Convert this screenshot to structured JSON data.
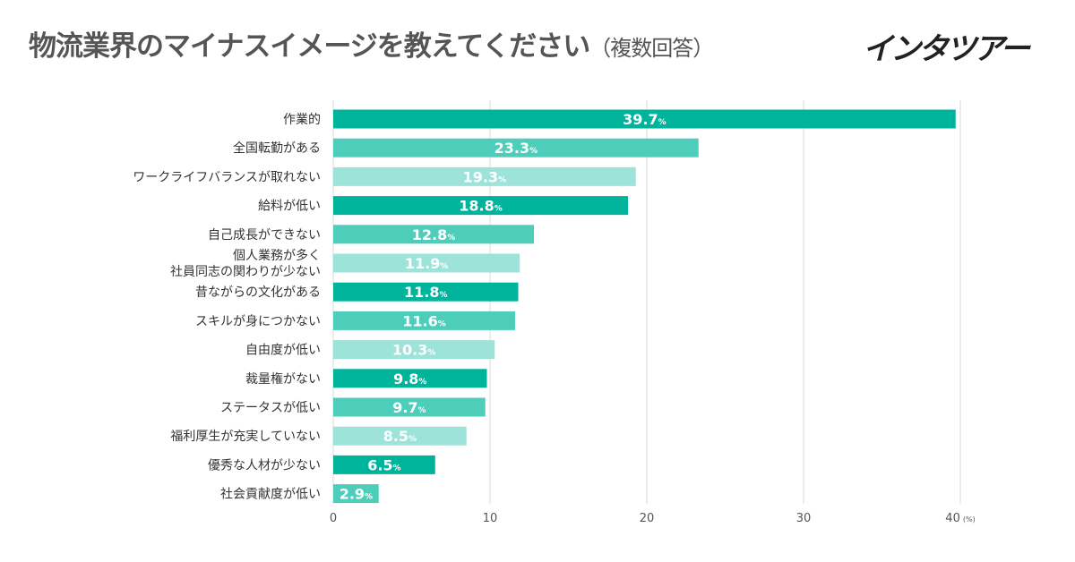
{
  "title": "物流業界のマイナスイメージを教えてください",
  "subtitle": "（複数回答）",
  "logo": "インタツアー",
  "colors": {
    "dark": "#00b39b",
    "mid": "#4ecdbb",
    "light": "#9de3d9",
    "grid": "#d9d9d9",
    "text": "#333333"
  },
  "chart_data": {
    "type": "bar",
    "orientation": "horizontal",
    "categories": [
      "作業的",
      "全国転勤がある",
      "ワークライフバランスが取れない",
      "給料が低い",
      "自己成長ができない",
      "個人業務が多く\n社員同志の関わりが少ない",
      "昔ながらの文化がある",
      "スキルが身につかない",
      "自由度が低い",
      "裁量権がない",
      "ステータスが低い",
      "福利厚生が充実していない",
      "優秀な人材が少ない",
      "社会貢献度が低い"
    ],
    "values": [
      39.7,
      23.3,
      19.3,
      18.8,
      12.8,
      11.9,
      11.8,
      11.6,
      10.3,
      9.8,
      9.7,
      8.5,
      6.5,
      2.9
    ],
    "value_suffix": "%",
    "xlim": [
      0,
      40
    ],
    "xticks": [
      0,
      10,
      20,
      30,
      40
    ],
    "xunit": "(%)",
    "grid": true
  }
}
